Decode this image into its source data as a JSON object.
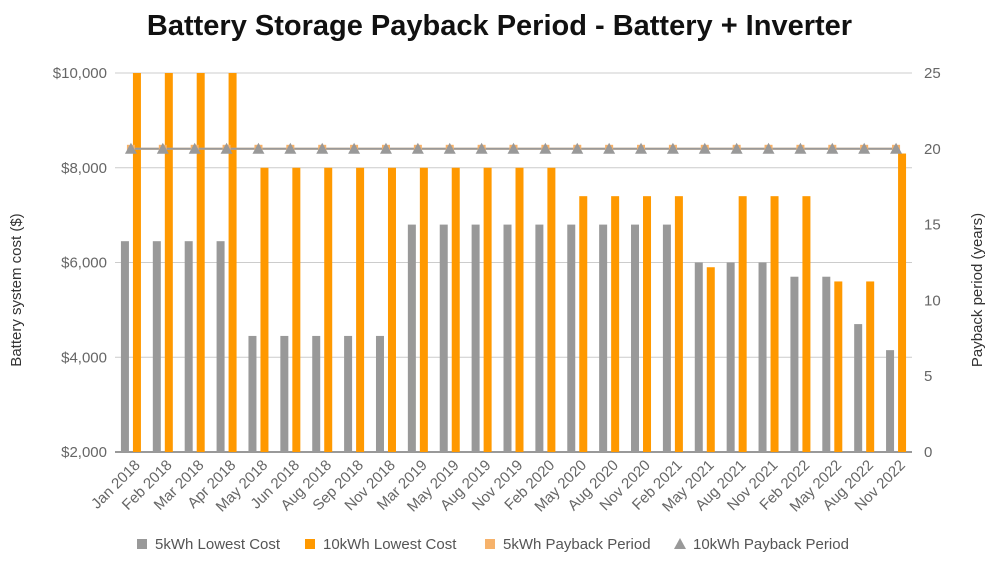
{
  "chart_data": {
    "type": "bar",
    "title": "Battery Storage Payback Period - Battery + Inverter",
    "ylabel": "Battery system cost ($)",
    "y2label": "Payback period (years)",
    "ylim": [
      2000,
      10000
    ],
    "y2lim": [
      0,
      25
    ],
    "yticks": [
      "$2,000",
      "$4,000",
      "$6,000",
      "$8,000",
      "$10,000"
    ],
    "y2ticks": [
      "0",
      "5",
      "10",
      "15",
      "20",
      "25"
    ],
    "grid": true,
    "legend_position": "bottom",
    "categories": [
      "Jan 2018",
      "Feb 2018",
      "Mar 2018",
      "Apr 2018",
      "May 2018",
      "Jun 2018",
      "Aug 2018",
      "Sep 2018",
      "Nov 2018",
      "Mar 2019",
      "May 2019",
      "Aug 2019",
      "Nov 2019",
      "Feb 2020",
      "May 2020",
      "Aug 2020",
      "Nov 2020",
      "Feb 2021",
      "May 2021",
      "Aug 2021",
      "Nov 2021",
      "Feb 2022",
      "May 2022",
      "Aug 2022",
      "Nov 2022"
    ],
    "series": [
      {
        "name": "5kWh Lowest Cost",
        "kind": "bar",
        "axis": "left",
        "color": "#999999",
        "values": [
          6450,
          6450,
          6450,
          6450,
          4450,
          4450,
          4450,
          4450,
          4450,
          6800,
          6800,
          6800,
          6800,
          6800,
          6800,
          6800,
          6800,
          6800,
          6000,
          6000,
          6000,
          5700,
          5700,
          4700,
          4150
        ]
      },
      {
        "name": "10kWh Lowest Cost",
        "kind": "bar",
        "axis": "left",
        "color": "#FF9900",
        "values": [
          10000,
          10000,
          10000,
          10000,
          8000,
          8000,
          8000,
          8000,
          8000,
          8000,
          8000,
          8000,
          8000,
          8000,
          7400,
          7400,
          7400,
          7400,
          5900,
          7400,
          7400,
          7400,
          5600,
          5600,
          8300
        ]
      },
      {
        "name": "5kWh Payback Period",
        "kind": "line",
        "marker": "square",
        "axis": "right",
        "color": "#F6B26B",
        "values": [
          20,
          20,
          20,
          20,
          20,
          20,
          20,
          20,
          20,
          20,
          20,
          20,
          20,
          20,
          20,
          20,
          20,
          20,
          20,
          20,
          20,
          20,
          20,
          20,
          20
        ]
      },
      {
        "name": "10kWh Payback Period",
        "kind": "line",
        "marker": "triangle",
        "axis": "right",
        "color": "#999999",
        "values": [
          20,
          20,
          20,
          20,
          20,
          20,
          20,
          20,
          20,
          20,
          20,
          20,
          20,
          20,
          20,
          20,
          20,
          20,
          20,
          20,
          20,
          20,
          20,
          20,
          20
        ]
      }
    ]
  }
}
